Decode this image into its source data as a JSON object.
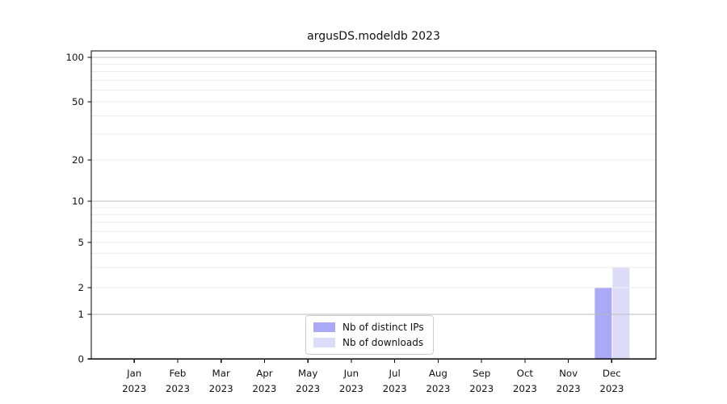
{
  "title": "argusDS.modeldb 2023",
  "colors": {
    "bar_distinct_ips": "#a9a9f7",
    "bar_downloads": "#dcdcf8",
    "axis": "#000000",
    "grid_major": "#bbbbbb",
    "grid_minor": "#ebebeb",
    "background": "#ffffff",
    "text": "#111111"
  },
  "legend": {
    "position": "lower center",
    "entries": [
      {
        "label": "Nb of distinct IPs",
        "color": "#a9a9f7"
      },
      {
        "label": "Nb of downloads",
        "color": "#dcdcf8"
      }
    ]
  },
  "chart_data": {
    "type": "bar",
    "title": "argusDS.modeldb 2023",
    "xlabel": "",
    "ylabel": "",
    "yscale": "symlog",
    "ylim": [
      0,
      115
    ],
    "grid": true,
    "categories": [
      "Jan 2023",
      "Feb 2023",
      "Mar 2023",
      "Apr 2023",
      "May 2023",
      "Jun 2023",
      "Jul 2023",
      "Aug 2023",
      "Sep 2023",
      "Oct 2023",
      "Nov 2023",
      "Dec 2023"
    ],
    "series": [
      {
        "name": "Nb of distinct IPs",
        "color": "#a9a9f7",
        "values": [
          0,
          0,
          0,
          0,
          0,
          0,
          0,
          0,
          0,
          0,
          0,
          2
        ]
      },
      {
        "name": "Nb of downloads",
        "color": "#dcdcf8",
        "values": [
          0,
          0,
          0,
          0,
          0,
          0,
          0,
          0,
          0,
          0,
          0,
          3
        ]
      }
    ],
    "y_tick_labels": [
      0,
      1,
      2,
      5,
      10,
      20,
      50,
      100
    ],
    "y_major_gridlines": [
      1,
      10,
      100
    ],
    "y_minor_gridlines": [
      2,
      3,
      4,
      5,
      6,
      7,
      8,
      9,
      20,
      30,
      40,
      50,
      60,
      70,
      80,
      90
    ]
  }
}
